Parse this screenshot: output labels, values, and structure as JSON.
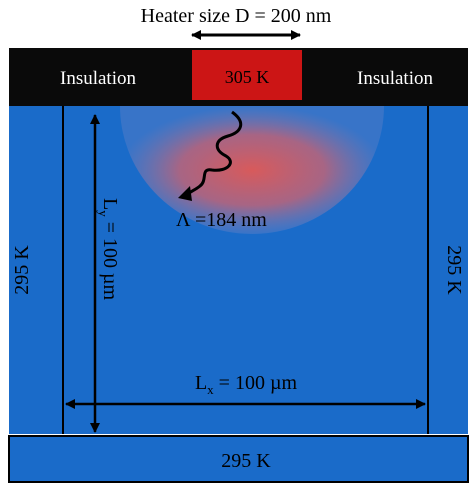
{
  "heater_label": "Heater size D = 200 nm",
  "insulation_left": "Insulation",
  "insulation_right": "Insulation",
  "heater_temp": "305 K",
  "mean_free_path": "Λ =184 nm",
  "left_wall_temp": "295 K",
  "right_wall_temp": "295 K",
  "bottom_temp": "295 K",
  "length_y": {
    "main": "L",
    "sub": "y",
    "rest": " = 100 µm"
  },
  "length_x": {
    "main": "L",
    "sub": "x",
    "rest": " = 100 µm"
  },
  "colors": {
    "domain": "#1A6BC9",
    "insulation": "#0A0A0A",
    "heater": "#CC1515",
    "hot_spot": "#D9504F",
    "line": "#000000"
  }
}
